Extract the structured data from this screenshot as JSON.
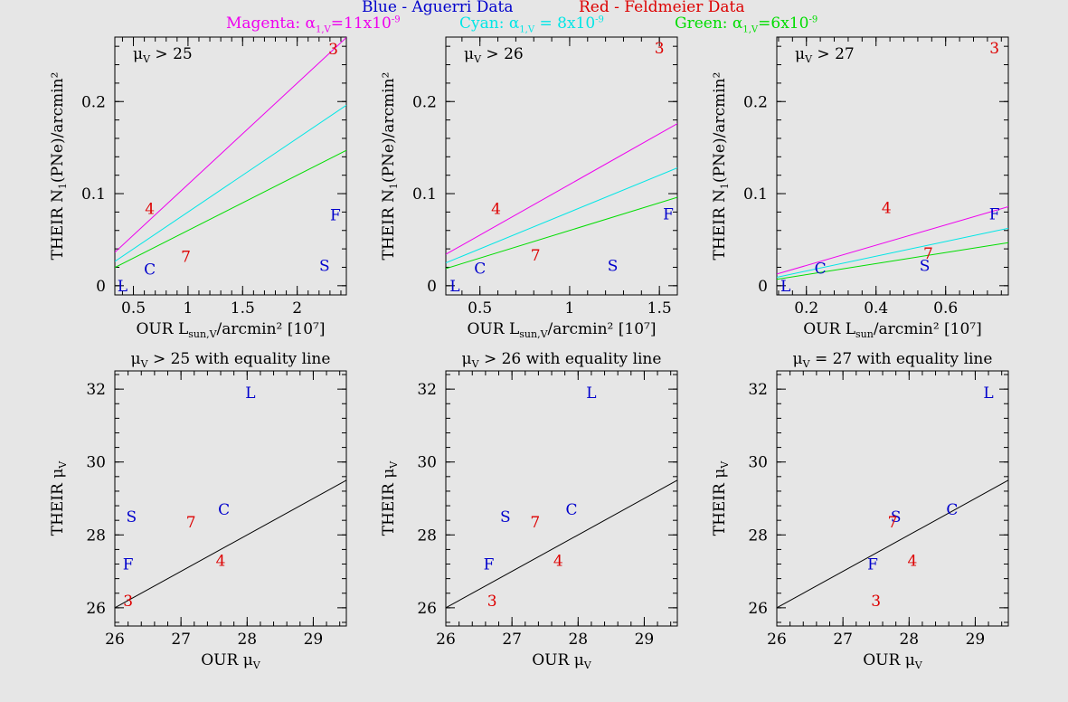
{
  "header": {
    "line1_blue": "Blue - Aguerri Data",
    "line1_red": "Red - Feldmeier Data",
    "magenta_label": "Magenta: α",
    "magenta_sub": "1,V",
    "magenta_val": "=11x10",
    "magenta_exp": "-9",
    "cyan_label": "Cyan: α",
    "cyan_sub": "1,V",
    "cyan_val": " = 8x10",
    "cyan_exp": "-9",
    "green_label": "Green: α",
    "green_sub": "1,V",
    "green_val": "=6x10",
    "green_exp": "-9"
  },
  "colors": {
    "blue": "#0000cc",
    "red": "#dd0000",
    "magenta": "#ee00ee",
    "cyan": "#00e6e6",
    "green": "#00dd00",
    "black": "#000000"
  },
  "chart_data": [
    {
      "type": "scatter",
      "panel": "top-left",
      "annotation": "μV > 25",
      "xlabel": "OUR Lsun,V/arcmin² [10⁷]",
      "ylabel": "THEIR N1(PNe)/arcmin²",
      "xlim": [
        0.33,
        2.45
      ],
      "ylim": [
        -0.01,
        0.27
      ],
      "xticks": [
        0.5,
        1,
        1.5,
        2
      ],
      "xticklabels": [
        "0.5",
        "1",
        "1.5",
        "2"
      ],
      "yticks": [
        0,
        0.1,
        0.2
      ],
      "yticklabels": [
        "0",
        "0.1",
        "0.2"
      ],
      "lines": [
        {
          "color": "magenta",
          "slope": 0.11
        },
        {
          "color": "cyan",
          "slope": 0.08
        },
        {
          "color": "green",
          "slope": 0.06
        }
      ],
      "points": [
        {
          "label": "L",
          "x": 0.4,
          "y": 0.0,
          "color": "blue"
        },
        {
          "label": "C",
          "x": 0.65,
          "y": 0.018,
          "color": "blue"
        },
        {
          "label": "S",
          "x": 2.25,
          "y": 0.022,
          "color": "blue"
        },
        {
          "label": "F",
          "x": 2.35,
          "y": 0.077,
          "color": "blue"
        },
        {
          "label": "4",
          "x": 0.65,
          "y": 0.084,
          "color": "red"
        },
        {
          "label": "7",
          "x": 0.98,
          "y": 0.032,
          "color": "red"
        },
        {
          "label": "3",
          "x": 2.33,
          "y": 0.257,
          "color": "red"
        }
      ]
    },
    {
      "type": "scatter",
      "panel": "top-middle",
      "annotation": "μV > 26",
      "xlabel": "OUR Lsun,V/arcmin² [10⁷]",
      "ylabel": "THEIR N1(PNe)/arcmin²",
      "xlim": [
        0.31,
        1.6
      ],
      "ylim": [
        -0.01,
        0.27
      ],
      "xticks": [
        0.5,
        1,
        1.5
      ],
      "xticklabels": [
        "0.5",
        "1",
        "1.5"
      ],
      "yticks": [
        0,
        0.1,
        0.2
      ],
      "yticklabels": [
        "0",
        "0.1",
        "0.2"
      ],
      "lines": [
        {
          "color": "magenta",
          "slope": 0.11
        },
        {
          "color": "cyan",
          "slope": 0.08
        },
        {
          "color": "green",
          "slope": 0.06
        }
      ],
      "points": [
        {
          "label": "L",
          "x": 0.36,
          "y": 0.0,
          "color": "blue"
        },
        {
          "label": "C",
          "x": 0.5,
          "y": 0.019,
          "color": "blue"
        },
        {
          "label": "S",
          "x": 1.24,
          "y": 0.022,
          "color": "blue"
        },
        {
          "label": "F",
          "x": 1.55,
          "y": 0.078,
          "color": "blue"
        },
        {
          "label": "4",
          "x": 0.59,
          "y": 0.084,
          "color": "red"
        },
        {
          "label": "7",
          "x": 0.81,
          "y": 0.033,
          "color": "red"
        },
        {
          "label": "3",
          "x": 1.5,
          "y": 0.258,
          "color": "red"
        }
      ]
    },
    {
      "type": "scatter",
      "panel": "top-right",
      "annotation": "μV > 27",
      "xlabel": "OUR Lsun/arcmin² [10⁷]",
      "ylabel": "THEIR N1(PNe)/arcmin²",
      "xlim": [
        0.115,
        0.78
      ],
      "ylim": [
        -0.01,
        0.27
      ],
      "xticks": [
        0.2,
        0.4,
        0.6
      ],
      "xticklabels": [
        "0.2",
        "0.4",
        "0.6"
      ],
      "yticks": [
        0,
        0.1,
        0.2
      ],
      "yticklabels": [
        "0",
        "0.1",
        "0.2"
      ],
      "lines": [
        {
          "color": "magenta",
          "slope": 0.11
        },
        {
          "color": "cyan",
          "slope": 0.08
        },
        {
          "color": "green",
          "slope": 0.06
        }
      ],
      "points": [
        {
          "label": "L",
          "x": 0.14,
          "y": 0.0,
          "color": "blue"
        },
        {
          "label": "C",
          "x": 0.24,
          "y": 0.019,
          "color": "blue"
        },
        {
          "label": "S",
          "x": 0.54,
          "y": 0.022,
          "color": "blue"
        },
        {
          "label": "F",
          "x": 0.74,
          "y": 0.078,
          "color": "blue"
        },
        {
          "label": "4",
          "x": 0.43,
          "y": 0.085,
          "color": "red"
        },
        {
          "label": "7",
          "x": 0.55,
          "y": 0.035,
          "color": "red"
        },
        {
          "label": "3",
          "x": 0.74,
          "y": 0.258,
          "color": "red"
        }
      ]
    },
    {
      "type": "scatter",
      "panel": "bottom-left",
      "title": "μV > 25 with equality line",
      "xlabel": "OUR μV",
      "ylabel": "THEIR μV",
      "xlim": [
        26,
        29.5
      ],
      "ylim": [
        25.5,
        32.5
      ],
      "xticks": [
        26,
        27,
        28,
        29
      ],
      "xticklabels": [
        "26",
        "27",
        "28",
        "29"
      ],
      "yticks": [
        26,
        28,
        30,
        32
      ],
      "yticklabels": [
        "26",
        "28",
        "30",
        "32"
      ],
      "equality_line": true,
      "points": [
        {
          "label": "L",
          "x": 28.05,
          "y": 31.9,
          "color": "blue"
        },
        {
          "label": "S",
          "x": 26.25,
          "y": 28.5,
          "color": "blue"
        },
        {
          "label": "C",
          "x": 27.65,
          "y": 28.7,
          "color": "blue"
        },
        {
          "label": "F",
          "x": 26.2,
          "y": 27.2,
          "color": "blue"
        },
        {
          "label": "7",
          "x": 27.15,
          "y": 28.35,
          "color": "red"
        },
        {
          "label": "4",
          "x": 27.6,
          "y": 27.3,
          "color": "red"
        },
        {
          "label": "3",
          "x": 26.2,
          "y": 26.2,
          "color": "red"
        }
      ]
    },
    {
      "type": "scatter",
      "panel": "bottom-middle",
      "title": "μV > 26 with equality line",
      "xlabel": "OUR μV",
      "ylabel": "THEIR μV",
      "xlim": [
        26,
        29.5
      ],
      "ylim": [
        25.5,
        32.5
      ],
      "xticks": [
        26,
        27,
        28,
        29
      ],
      "xticklabels": [
        "26",
        "27",
        "28",
        "29"
      ],
      "yticks": [
        26,
        28,
        30,
        32
      ],
      "yticklabels": [
        "26",
        "28",
        "30",
        "32"
      ],
      "equality_line": true,
      "points": [
        {
          "label": "L",
          "x": 28.2,
          "y": 31.9,
          "color": "blue"
        },
        {
          "label": "S",
          "x": 26.9,
          "y": 28.5,
          "color": "blue"
        },
        {
          "label": "C",
          "x": 27.9,
          "y": 28.7,
          "color": "blue"
        },
        {
          "label": "F",
          "x": 26.65,
          "y": 27.2,
          "color": "blue"
        },
        {
          "label": "7",
          "x": 27.35,
          "y": 28.35,
          "color": "red"
        },
        {
          "label": "4",
          "x": 27.7,
          "y": 27.3,
          "color": "red"
        },
        {
          "label": "3",
          "x": 26.7,
          "y": 26.2,
          "color": "red"
        }
      ]
    },
    {
      "type": "scatter",
      "panel": "bottom-right",
      "title": "μV = 27 with equality line",
      "xlabel": "OUR μV",
      "ylabel": "THEIR μV",
      "xlim": [
        26,
        29.5
      ],
      "ylim": [
        25.5,
        32.5
      ],
      "xticks": [
        26,
        27,
        28,
        29
      ],
      "xticklabels": [
        "26",
        "27",
        "28",
        "29"
      ],
      "yticks": [
        26,
        28,
        30,
        32
      ],
      "yticklabels": [
        "26",
        "28",
        "30",
        "32"
      ],
      "equality_line": true,
      "points": [
        {
          "label": "L",
          "x": 29.2,
          "y": 31.9,
          "color": "blue"
        },
        {
          "label": "S",
          "x": 27.8,
          "y": 28.5,
          "color": "blue"
        },
        {
          "label": "C",
          "x": 28.65,
          "y": 28.7,
          "color": "blue"
        },
        {
          "label": "F",
          "x": 27.45,
          "y": 27.2,
          "color": "blue"
        },
        {
          "label": "7",
          "x": 27.75,
          "y": 28.35,
          "color": "red"
        },
        {
          "label": "4",
          "x": 28.05,
          "y": 27.3,
          "color": "red"
        },
        {
          "label": "3",
          "x": 27.5,
          "y": 26.2,
          "color": "red"
        }
      ]
    }
  ]
}
